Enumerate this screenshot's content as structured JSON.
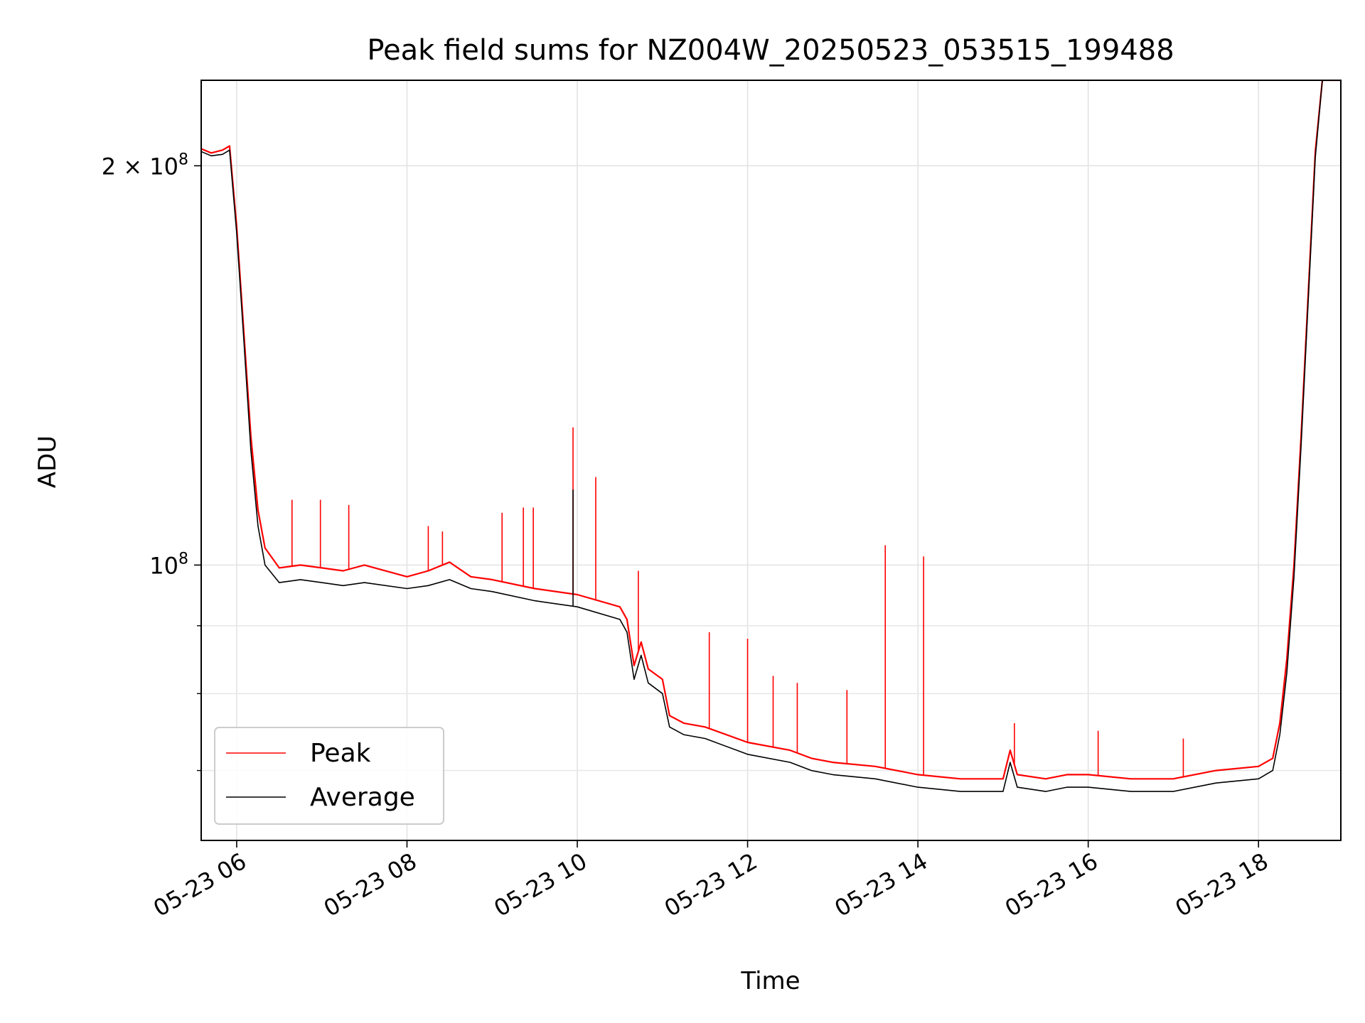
{
  "chart_data": {
    "type": "line",
    "title": "Peak field sums for NZ004W_20250523_053515_199488",
    "xlabel": "Time",
    "ylabel": "ADU",
    "x_scale": "time",
    "y_scale": "log",
    "xlim": [
      "2025-05-23 05:35",
      "2025-05-23 18:58"
    ],
    "ylim": [
      62000000,
      232000000
    ],
    "x_ticks": [
      {
        "t": "2025-05-23 06:00",
        "label": "05-23 06"
      },
      {
        "t": "2025-05-23 08:00",
        "label": "05-23 08"
      },
      {
        "t": "2025-05-23 10:00",
        "label": "05-23 10"
      },
      {
        "t": "2025-05-23 12:00",
        "label": "05-23 12"
      },
      {
        "t": "2025-05-23 14:00",
        "label": "05-23 14"
      },
      {
        "t": "2025-05-23 16:00",
        "label": "05-23 16"
      },
      {
        "t": "2025-05-23 18:00",
        "label": "05-23 18"
      }
    ],
    "y_major_ticks": [
      {
        "value": 100000000,
        "base": "10",
        "exp": "8"
      },
      {
        "value": 200000000,
        "base": "2 × 10",
        "exp": "8"
      }
    ],
    "y_minor_ticks": [
      70000000,
      80000000,
      90000000
    ],
    "grid": true,
    "legend": "lower-left",
    "series": [
      {
        "name": "Peak",
        "color": "#ff0000",
        "points": [
          [
            "2025-05-23 05:35",
            206000000
          ],
          [
            "2025-05-23 05:42",
            204500000
          ],
          [
            "2025-05-23 05:50",
            205500000
          ],
          [
            "2025-05-23 05:55",
            207000000
          ],
          [
            "2025-05-23 06:00",
            180000000
          ],
          [
            "2025-05-23 06:05",
            150000000
          ],
          [
            "2025-05-23 06:10",
            125000000
          ],
          [
            "2025-05-23 06:15",
            110000000
          ],
          [
            "2025-05-23 06:20",
            103000000
          ],
          [
            "2025-05-23 06:30",
            99500000
          ],
          [
            "2025-05-23 06:45",
            100000000
          ],
          [
            "2025-05-23 07:00",
            99500000
          ],
          [
            "2025-05-23 07:15",
            99000000
          ],
          [
            "2025-05-23 07:30",
            100000000
          ],
          [
            "2025-05-23 08:00",
            98000000
          ],
          [
            "2025-05-23 08:15",
            99000000
          ],
          [
            "2025-05-23 08:30",
            100500000
          ],
          [
            "2025-05-23 08:45",
            98000000
          ],
          [
            "2025-05-23 09:00",
            97500000
          ],
          [
            "2025-05-23 09:30",
            96000000
          ],
          [
            "2025-05-23 10:00",
            95000000
          ],
          [
            "2025-05-23 10:30",
            93000000
          ],
          [
            "2025-05-23 10:35",
            91000000
          ],
          [
            "2025-05-23 10:40",
            84000000
          ],
          [
            "2025-05-23 10:45",
            87500000
          ],
          [
            "2025-05-23 10:50",
            83500000
          ],
          [
            "2025-05-23 11:00",
            82000000
          ],
          [
            "2025-05-23 11:05",
            77000000
          ],
          [
            "2025-05-23 11:15",
            76000000
          ],
          [
            "2025-05-23 11:30",
            75500000
          ],
          [
            "2025-05-23 12:00",
            73500000
          ],
          [
            "2025-05-23 12:30",
            72500000
          ],
          [
            "2025-05-23 12:45",
            71500000
          ],
          [
            "2025-05-23 13:00",
            71000000
          ],
          [
            "2025-05-23 13:30",
            70500000
          ],
          [
            "2025-05-23 14:00",
            69500000
          ],
          [
            "2025-05-23 14:30",
            69000000
          ],
          [
            "2025-05-23 15:00",
            69000000
          ],
          [
            "2025-05-23 15:05",
            72500000
          ],
          [
            "2025-05-23 15:10",
            69500000
          ],
          [
            "2025-05-23 15:30",
            69000000
          ],
          [
            "2025-05-23 15:45",
            69500000
          ],
          [
            "2025-05-23 16:00",
            69500000
          ],
          [
            "2025-05-23 16:30",
            69000000
          ],
          [
            "2025-05-23 17:00",
            69000000
          ],
          [
            "2025-05-23 17:30",
            70000000
          ],
          [
            "2025-05-23 18:00",
            70500000
          ],
          [
            "2025-05-23 18:10",
            71500000
          ],
          [
            "2025-05-23 18:15",
            76000000
          ],
          [
            "2025-05-23 18:20",
            85000000
          ],
          [
            "2025-05-23 18:25",
            100000000
          ],
          [
            "2025-05-23 18:30",
            125000000
          ],
          [
            "2025-05-23 18:35",
            160000000
          ],
          [
            "2025-05-23 18:40",
            205000000
          ],
          [
            "2025-05-23 18:45",
            232000000
          ],
          [
            "2025-05-23 18:58",
            232000000
          ]
        ],
        "spikes": [
          [
            "2025-05-23 06:39",
            112000000
          ],
          [
            "2025-05-23 06:59",
            112000000
          ],
          [
            "2025-05-23 07:19",
            111000000
          ],
          [
            "2025-05-23 08:15",
            107000000
          ],
          [
            "2025-05-23 08:25",
            106000000
          ],
          [
            "2025-05-23 09:07",
            109500000
          ],
          [
            "2025-05-23 09:22",
            110500000
          ],
          [
            "2025-05-23 09:29",
            110500000
          ],
          [
            "2025-05-23 09:57",
            127000000
          ],
          [
            "2025-05-23 10:13",
            116500000
          ],
          [
            "2025-05-23 10:43",
            99000000
          ],
          [
            "2025-05-23 11:33",
            89000000
          ],
          [
            "2025-05-23 12:00",
            88000000
          ],
          [
            "2025-05-23 12:18",
            82500000
          ],
          [
            "2025-05-23 12:35",
            81500000
          ],
          [
            "2025-05-23 13:10",
            80500000
          ],
          [
            "2025-05-23 13:37",
            103500000
          ],
          [
            "2025-05-23 14:04",
            101500000
          ],
          [
            "2025-05-23 15:08",
            76000000
          ],
          [
            "2025-05-23 16:07",
            75000000
          ],
          [
            "2025-05-23 17:07",
            74000000
          ]
        ]
      },
      {
        "name": "Average",
        "color": "#000000",
        "points": [
          [
            "2025-05-23 05:35",
            205000000
          ],
          [
            "2025-05-23 05:42",
            203500000
          ],
          [
            "2025-05-23 05:50",
            204000000
          ],
          [
            "2025-05-23 05:55",
            205500000
          ],
          [
            "2025-05-23 06:00",
            178000000
          ],
          [
            "2025-05-23 06:05",
            148000000
          ],
          [
            "2025-05-23 06:10",
            122000000
          ],
          [
            "2025-05-23 06:15",
            107000000
          ],
          [
            "2025-05-23 06:20",
            100000000
          ],
          [
            "2025-05-23 06:30",
            97000000
          ],
          [
            "2025-05-23 06:45",
            97500000
          ],
          [
            "2025-05-23 07:00",
            97000000
          ],
          [
            "2025-05-23 07:15",
            96500000
          ],
          [
            "2025-05-23 07:30",
            97000000
          ],
          [
            "2025-05-23 08:00",
            96000000
          ],
          [
            "2025-05-23 08:15",
            96500000
          ],
          [
            "2025-05-23 08:30",
            97500000
          ],
          [
            "2025-05-23 08:45",
            96000000
          ],
          [
            "2025-05-23 09:00",
            95500000
          ],
          [
            "2025-05-23 09:30",
            94000000
          ],
          [
            "2025-05-23 10:00",
            93000000
          ],
          [
            "2025-05-23 10:30",
            91000000
          ],
          [
            "2025-05-23 10:35",
            89000000
          ],
          [
            "2025-05-23 10:40",
            82000000
          ],
          [
            "2025-05-23 10:45",
            85500000
          ],
          [
            "2025-05-23 10:50",
            81500000
          ],
          [
            "2025-05-23 11:00",
            80000000
          ],
          [
            "2025-05-23 11:05",
            75500000
          ],
          [
            "2025-05-23 11:15",
            74500000
          ],
          [
            "2025-05-23 11:30",
            74000000
          ],
          [
            "2025-05-23 12:00",
            72000000
          ],
          [
            "2025-05-23 12:30",
            71000000
          ],
          [
            "2025-05-23 12:45",
            70000000
          ],
          [
            "2025-05-23 13:00",
            69500000
          ],
          [
            "2025-05-23 13:30",
            69000000
          ],
          [
            "2025-05-23 14:00",
            68000000
          ],
          [
            "2025-05-23 14:30",
            67500000
          ],
          [
            "2025-05-23 15:00",
            67500000
          ],
          [
            "2025-05-23 15:05",
            71000000
          ],
          [
            "2025-05-23 15:10",
            68000000
          ],
          [
            "2025-05-23 15:30",
            67500000
          ],
          [
            "2025-05-23 15:45",
            68000000
          ],
          [
            "2025-05-23 16:00",
            68000000
          ],
          [
            "2025-05-23 16:30",
            67500000
          ],
          [
            "2025-05-23 17:00",
            67500000
          ],
          [
            "2025-05-23 17:30",
            68500000
          ],
          [
            "2025-05-23 18:00",
            69000000
          ],
          [
            "2025-05-23 18:10",
            70000000
          ],
          [
            "2025-05-23 18:15",
            74500000
          ],
          [
            "2025-05-23 18:20",
            83000000
          ],
          [
            "2025-05-23 18:25",
            98000000
          ],
          [
            "2025-05-23 18:30",
            123000000
          ],
          [
            "2025-05-23 18:35",
            158000000
          ],
          [
            "2025-05-23 18:40",
            203000000
          ],
          [
            "2025-05-23 18:45",
            232000000
          ],
          [
            "2025-05-23 18:58",
            232000000
          ]
        ],
        "spikes": [
          [
            "2025-05-23 09:57",
            114000000
          ]
        ]
      }
    ]
  }
}
